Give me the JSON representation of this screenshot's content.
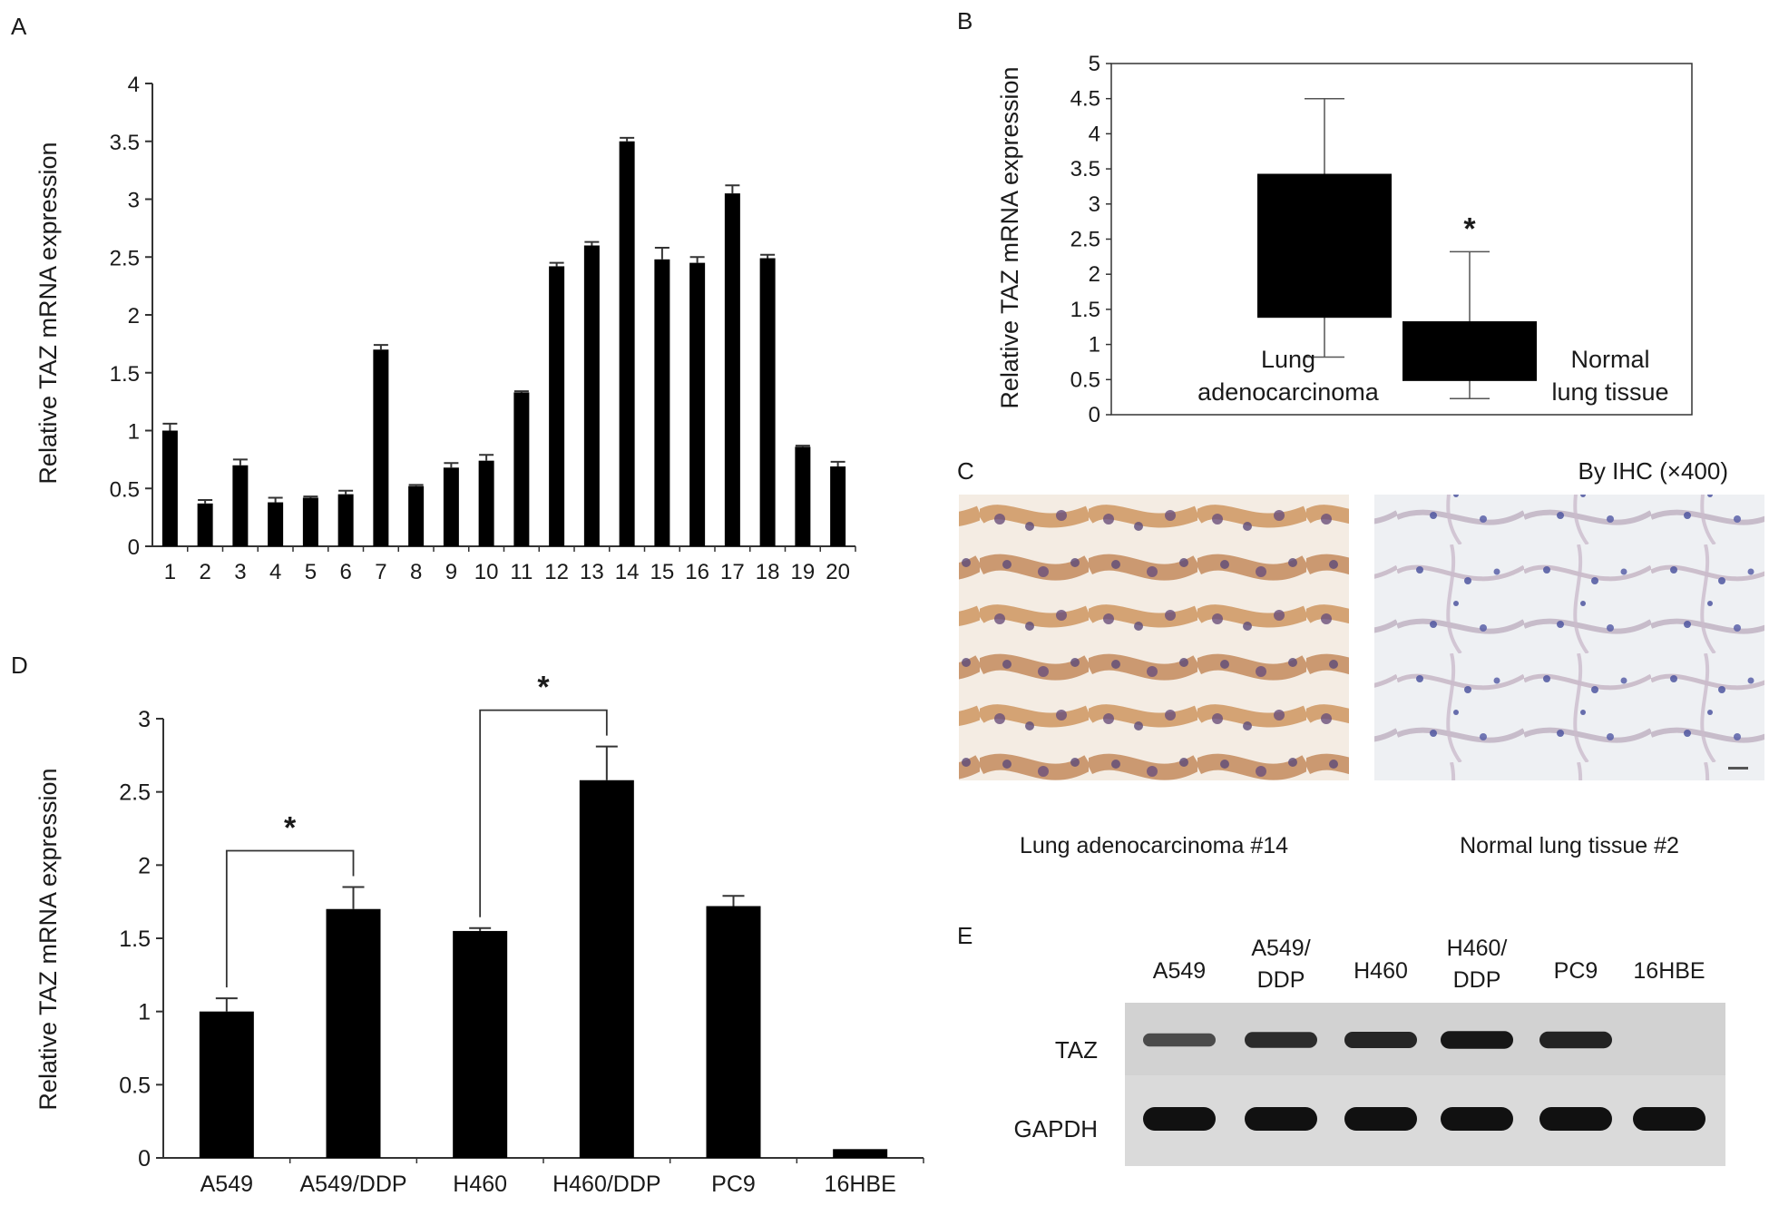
{
  "panels": {
    "A": {
      "label": "A",
      "ylabel": "Relative TAZ mRNA expression",
      "chart_data": {
        "type": "bar",
        "categories": [
          "1",
          "2",
          "3",
          "4",
          "5",
          "6",
          "7",
          "8",
          "9",
          "10",
          "11",
          "12",
          "13",
          "14",
          "15",
          "16",
          "17",
          "18",
          "19",
          "20"
        ],
        "values": [
          1.0,
          0.37,
          0.7,
          0.38,
          0.42,
          0.45,
          1.7,
          0.52,
          0.68,
          0.74,
          1.33,
          2.42,
          2.6,
          3.5,
          2.48,
          2.45,
          3.05,
          2.49,
          0.86,
          0.69
        ],
        "errors": [
          0.06,
          0.03,
          0.05,
          0.04,
          0.01,
          0.03,
          0.04,
          0.01,
          0.04,
          0.05,
          0.01,
          0.03,
          0.03,
          0.03,
          0.1,
          0.05,
          0.07,
          0.03,
          0.01,
          0.04
        ],
        "ylim": [
          0,
          4
        ],
        "yticks": [
          0,
          0.5,
          1,
          1.5,
          2,
          2.5,
          3,
          3.5,
          4
        ],
        "ytick_labels": [
          "0",
          "0.5",
          "1",
          "1.5",
          "2",
          "2.5",
          "3",
          "3.5",
          "4"
        ],
        "xlabel": "",
        "grid": false
      }
    },
    "B": {
      "label": "B",
      "ylabel": "Relative TAZ mRNA expression",
      "chart_data": {
        "type": "box",
        "groups": [
          {
            "label_lines": [
              "Lung",
              "adenocarcinoma"
            ],
            "whisker_low": 0.82,
            "q1": 1.38,
            "q3": 3.43,
            "whisker_high": 4.5,
            "annotation": ""
          },
          {
            "label_lines": [
              "Normal",
              "lung tissue"
            ],
            "whisker_low": 0.23,
            "q1": 0.48,
            "q3": 1.33,
            "whisker_high": 2.32,
            "annotation": "*"
          }
        ],
        "ylim": [
          0,
          5
        ],
        "yticks": [
          0,
          0.5,
          1,
          1.5,
          2,
          2.5,
          3,
          3.5,
          4,
          4.5,
          5
        ],
        "ytick_labels": [
          "0",
          "0.5",
          "1",
          "1.5",
          "2",
          "2.5",
          "3",
          "3.5",
          "4",
          "4.5",
          "5"
        ]
      }
    },
    "C": {
      "label": "C",
      "note": "By IHC (×400)",
      "images": [
        {
          "caption": "Lung adenocarcinoma #14",
          "stain_color": "#b0733c",
          "bg_color": "#f4ece3"
        },
        {
          "caption": "Normal lung tissue #2",
          "stain_color": "#5b5f9e",
          "bg_color": "#eef0f3"
        }
      ]
    },
    "D": {
      "label": "D",
      "ylabel": "Relative TAZ mRNA expression",
      "chart_data": {
        "type": "bar",
        "categories": [
          "A549",
          "A549/DDP",
          "H460",
          "H460/DDP",
          "PC9",
          "16HBE"
        ],
        "values": [
          1.0,
          1.7,
          1.55,
          2.58,
          1.72,
          0.06
        ],
        "errors": [
          0.09,
          0.15,
          0.02,
          0.23,
          0.07,
          0.0
        ],
        "ylim": [
          0,
          3
        ],
        "yticks": [
          0,
          0.5,
          1,
          1.5,
          2,
          2.5,
          3
        ],
        "ytick_labels": [
          "0",
          "0.5",
          "1",
          "1.5",
          "2",
          "2.5",
          "3"
        ],
        "significance": [
          {
            "from": "A549",
            "to": "A549/DDP",
            "label": "*"
          },
          {
            "from": "H460",
            "to": "H460/DDP",
            "label": "*"
          }
        ],
        "grid": false
      }
    },
    "E": {
      "label": "E",
      "lanes": [
        {
          "lines": [
            "A549"
          ]
        },
        {
          "lines": [
            "A549/",
            "DDP"
          ]
        },
        {
          "lines": [
            "H460"
          ]
        },
        {
          "lines": [
            "H460/",
            "DDP"
          ]
        },
        {
          "lines": [
            "PC9"
          ]
        },
        {
          "lines": [
            "16HBE"
          ]
        }
      ],
      "rows": [
        {
          "label": "TAZ",
          "intensities": [
            0.45,
            0.75,
            0.8,
            0.95,
            0.85,
            0.0
          ]
        },
        {
          "label": "GAPDH",
          "intensities": [
            1.0,
            1.0,
            1.0,
            1.0,
            1.0,
            1.0
          ]
        }
      ]
    }
  },
  "colors": {
    "bar": "#000000",
    "axis": "#333333",
    "blot_bg": "#d9d9d9",
    "band": "#111111"
  }
}
